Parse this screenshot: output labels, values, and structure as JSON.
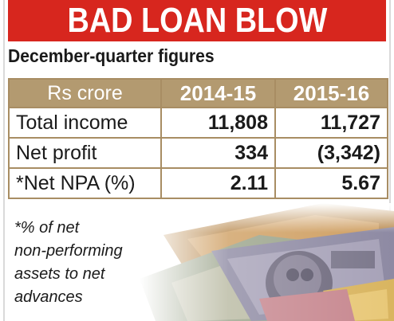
{
  "chart_data": {
    "type": "table",
    "title": "BAD LOAN BLOW",
    "subtitle": "December-quarter figures",
    "columns": [
      "Rs crore",
      "2014-15",
      "2015-16"
    ],
    "rows": [
      {
        "label": "Total income",
        "values": [
          "11,808",
          "11,727"
        ]
      },
      {
        "label": "Net profit",
        "values": [
          "334",
          "(3,342)"
        ]
      },
      {
        "label": "*Net NPA (%)",
        "values": [
          "2.11",
          "5.67"
        ]
      }
    ],
    "footnote": [
      "*% of net",
      "non-performing",
      "assets to net",
      "advances"
    ]
  },
  "colors": {
    "headline_bg": "#d7261e",
    "header_row_bg": "#b39a70",
    "border": "#a88d63"
  },
  "illustration": "currency-notes-image"
}
